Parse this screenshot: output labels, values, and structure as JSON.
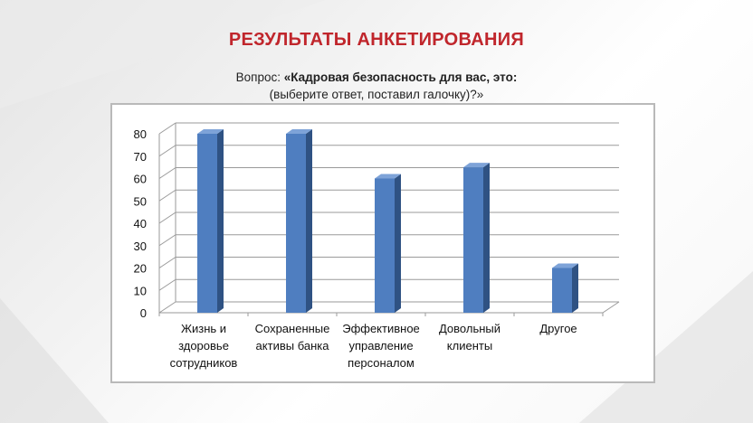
{
  "slide": {
    "title": "РЕЗУЛЬТАТЫ  АНКЕТИРОВАНИЯ",
    "question_prefix": "Вопрос: ",
    "question_main": "«Кадровая безопасность для вас, это:",
    "question_line2": "(выберите ответ, поставил галочку)?»"
  },
  "chart_data": {
    "type": "bar",
    "categories": [
      [
        "Жизнь и",
        "здоровье",
        "сотрудников"
      ],
      [
        "Сохраненные",
        "активы банка"
      ],
      [
        "Эффективное",
        "управление",
        "персоналом"
      ],
      [
        "Довольный",
        "клиенты"
      ],
      [
        "Другое"
      ]
    ],
    "values": [
      80,
      80,
      60,
      65,
      20
    ],
    "ylim": [
      0,
      80
    ],
    "yticks": [
      "0",
      "10",
      "20",
      "30",
      "40",
      "50",
      "60",
      "70",
      "80"
    ],
    "grid": true,
    "legend": "none",
    "colors": {
      "bar_front": "#4f7ec0",
      "bar_side": "#2f5283",
      "bar_top": "#7ea3d8",
      "grid": "#9a9a9a"
    }
  }
}
